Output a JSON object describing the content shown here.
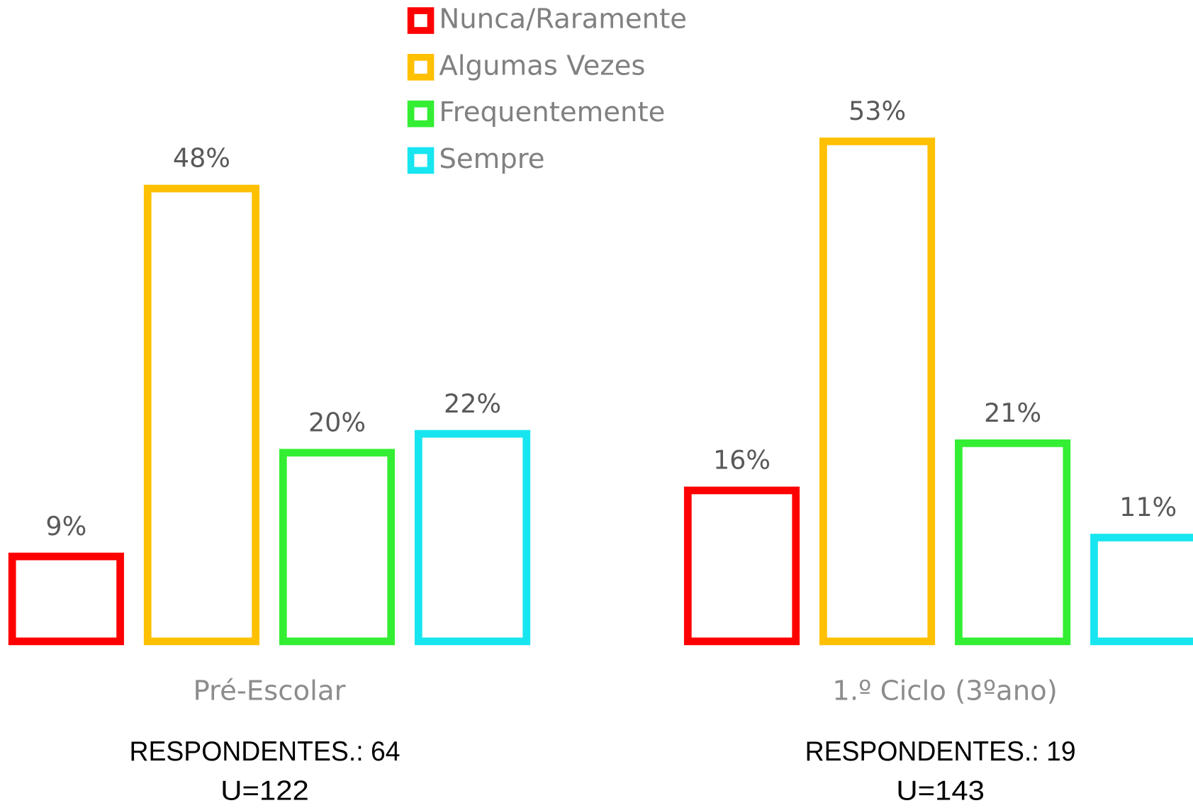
{
  "chart_data": {
    "type": "bar",
    "categories": [
      "Pré-Escolar",
      "1.º Ciclo (3ºano)"
    ],
    "series": [
      {
        "name": "Nunca/Raramente",
        "color": "#ff0000",
        "values": [
          9,
          16
        ],
        "value_labels": [
          "9%",
          "16%"
        ]
      },
      {
        "name": "Algumas Vezes",
        "color": "#ffc000",
        "values": [
          48,
          53
        ],
        "value_labels": [
          "48%",
          "53%"
        ]
      },
      {
        "name": "Frequentemente",
        "color": "#33ee33",
        "values": [
          20,
          21
        ],
        "value_labels": [
          "20%",
          "21%"
        ]
      },
      {
        "name": "Sempre",
        "color": "#17e5f0",
        "values": [
          22,
          11
        ],
        "value_labels": [
          "22%",
          "11%"
        ]
      }
    ],
    "ylim": [
      0,
      60
    ],
    "annotations": [
      [
        "RESPONDENTES.: 64",
        "U=122"
      ],
      [
        "RESPONDENTES.: 19",
        "U=143"
      ]
    ]
  }
}
